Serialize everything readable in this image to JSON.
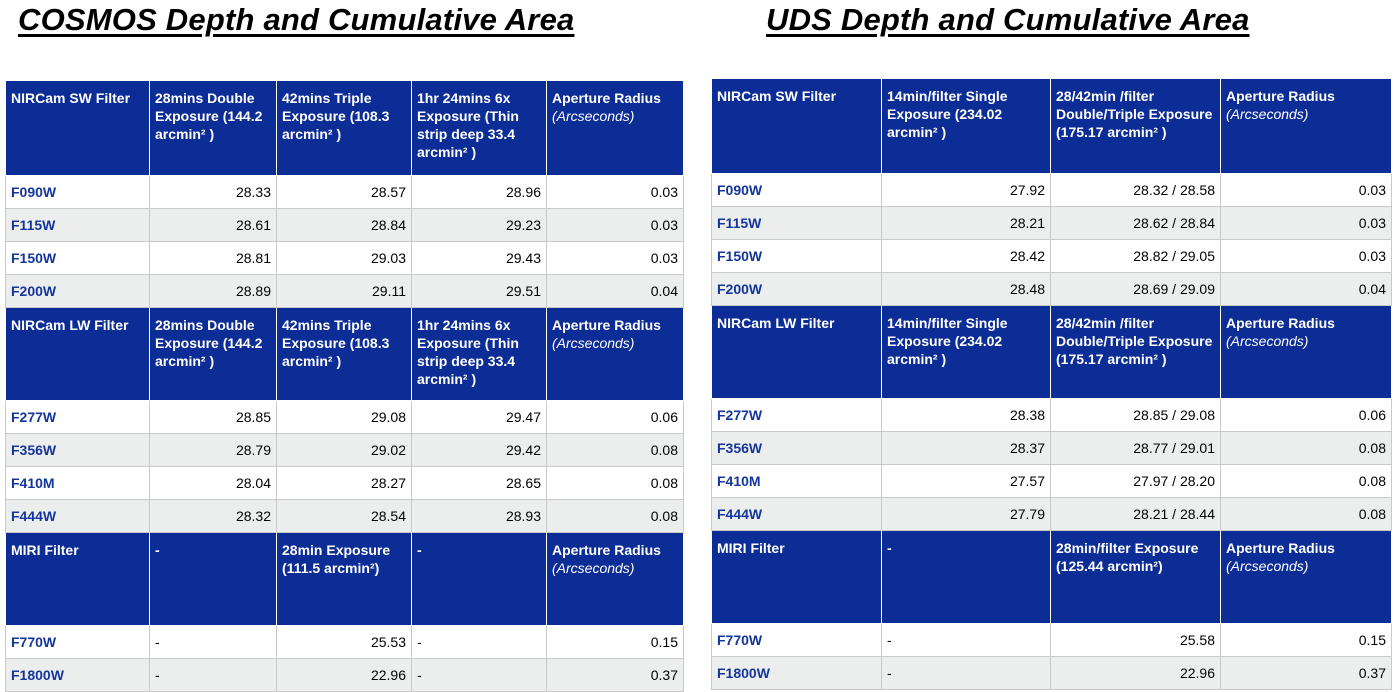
{
  "titles": {
    "cosmos": "COSMOS Depth and Cumulative Area",
    "uds": "UDS Depth and Cumulative Area"
  },
  "colors": {
    "header_bg": "#0d2d96",
    "filter_text": "#14359c",
    "alt_row_bg": "#eceeee"
  },
  "cosmos": {
    "sw": {
      "header": [
        "NIRCam SW Filter",
        "28mins Double Exposure (144.2 arcmin² )",
        "42mins Triple Exposure (108.3  arcmin² )",
        "1hr 24mins 6x Exposure (Thin strip deep 33.4 arcmin² )",
        "Aperture Radius"
      ],
      "header_note": "(Arcseconds)",
      "rows": [
        [
          "F090W",
          "28.33",
          "28.57",
          "28.96",
          "0.03"
        ],
        [
          "F115W",
          "28.61",
          "28.84",
          "29.23",
          "0.03"
        ],
        [
          "F150W",
          "28.81",
          "29.03",
          "29.43",
          "0.03"
        ],
        [
          "F200W",
          "28.89",
          "29.11",
          "29.51",
          "0.04"
        ]
      ]
    },
    "lw": {
      "header": [
        "NIRCam LW Filter",
        "28mins Double Exposure (144.2 arcmin² )",
        "42mins Triple Exposure (108.3  arcmin² )",
        "1hr 24mins 6x Exposure (Thin strip deep 33.4 arcmin² )",
        "Aperture Radius"
      ],
      "header_note": "(Arcseconds)",
      "rows": [
        [
          "F277W",
          "28.85",
          "29.08",
          "29.47",
          "0.06"
        ],
        [
          "F356W",
          "28.79",
          "29.02",
          "29.42",
          "0.08"
        ],
        [
          "F410M",
          "28.04",
          "28.27",
          "28.65",
          "0.08"
        ],
        [
          "F444W",
          "28.32",
          "28.54",
          "28.93",
          "0.08"
        ]
      ]
    },
    "miri": {
      "header": [
        "MIRI Filter",
        "-",
        "28min Exposure (111.5 arcmin²)",
        "-",
        "Aperture Radius"
      ],
      "header_note": "(Arcseconds)",
      "rows": [
        [
          "F770W",
          "-",
          "25.53",
          "-",
          "0.15"
        ],
        [
          "F1800W",
          "-",
          "22.96",
          "-",
          "0.37"
        ]
      ]
    }
  },
  "uds": {
    "sw": {
      "header": [
        "NIRCam SW Filter",
        "14min/filter Single Exposure (234.02 arcmin² )",
        "28/42min /filter Double/Triple Exposure (175.17 arcmin² )",
        "Aperture Radius"
      ],
      "header_note": "(Arcseconds)",
      "rows": [
        [
          "F090W",
          "27.92",
          "28.32 / 28.58",
          "0.03"
        ],
        [
          "F115W",
          "28.21",
          "28.62 / 28.84",
          "0.03"
        ],
        [
          "F150W",
          "28.42",
          "28.82 / 29.05",
          "0.03"
        ],
        [
          "F200W",
          "28.48",
          "28.69 / 29.09",
          "0.04"
        ]
      ]
    },
    "lw": {
      "header": [
        "NIRCam LW Filter",
        "14min/filter Single Exposure (234.02 arcmin² )",
        "28/42min /filter Double/Triple Exposure (175.17 arcmin² )",
        "Aperture Radius"
      ],
      "header_note": "(Arcseconds)",
      "rows": [
        [
          "F277W",
          "28.38",
          "28.85 / 29.08",
          "0.06"
        ],
        [
          "F356W",
          "28.37",
          "28.77 / 29.01",
          "0.08"
        ],
        [
          "F410M",
          "27.57",
          "27.97 / 28.20",
          "0.08"
        ],
        [
          "F444W",
          "27.79",
          "28.21 / 28.44",
          "0.08"
        ]
      ]
    },
    "miri": {
      "header": [
        "MIRI Filter",
        "-",
        "28min/filter Exposure (125.44 arcmin²)",
        "Aperture Radius"
      ],
      "header_note": "(Arcseconds)",
      "rows": [
        [
          "F770W",
          "-",
          "25.58",
          "0.15"
        ],
        [
          "F1800W",
          "-",
          "22.96",
          "0.37"
        ]
      ]
    }
  }
}
